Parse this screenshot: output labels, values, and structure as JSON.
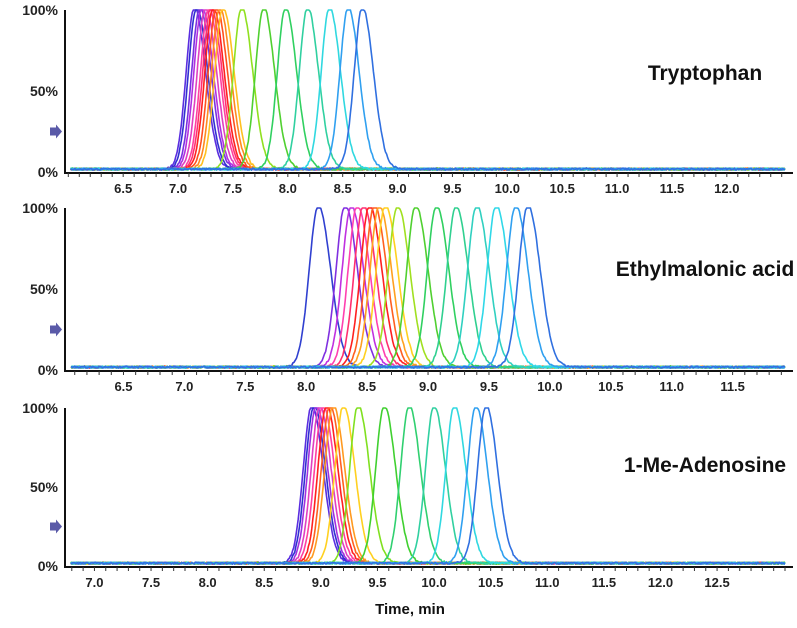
{
  "chart_data": [
    {
      "type": "line",
      "title": "Tryptophan",
      "ylabel_ticks": [
        "100%",
        "50%",
        "0%"
      ],
      "xlim": [
        5.97,
        12.53
      ],
      "ylim": [
        0,
        100
      ],
      "xticks": [
        "6.5",
        "7.0",
        "7.5",
        "8.0",
        "8.5",
        "9.0",
        "9.5",
        "10.0",
        "10.5",
        "11.0",
        "11.5",
        "12.0"
      ],
      "series": [
        {
          "rt": 7.15,
          "color": "#5a2de0"
        },
        {
          "rt": 7.17,
          "color": "#3030d0"
        },
        {
          "rt": 7.2,
          "color": "#7a30e0"
        },
        {
          "rt": 7.22,
          "color": "#b030e0"
        },
        {
          "rt": 7.25,
          "color": "#e040c0"
        },
        {
          "rt": 7.28,
          "color": "#ff40a0"
        },
        {
          "rt": 7.3,
          "color": "#ff3070"
        },
        {
          "rt": 7.32,
          "color": "#ff2020"
        },
        {
          "rt": 7.35,
          "color": "#ff5020"
        },
        {
          "rt": 7.38,
          "color": "#ff8a20"
        },
        {
          "rt": 7.41,
          "color": "#ffc020"
        },
        {
          "rt": 7.58,
          "color": "#90e020"
        },
        {
          "rt": 7.78,
          "color": "#50d030"
        },
        {
          "rt": 7.98,
          "color": "#30d060"
        },
        {
          "rt": 8.18,
          "color": "#30d0a0"
        },
        {
          "rt": 8.38,
          "color": "#30d8e0"
        },
        {
          "rt": 8.55,
          "color": "#30a0f0"
        },
        {
          "rt": 8.68,
          "color": "#3070e0"
        }
      ]
    },
    {
      "type": "line",
      "title": "Ethylmalonic acid",
      "ylabel_ticks": [
        "100%",
        "50%",
        "0%"
      ],
      "xlim": [
        6.02,
        11.93
      ],
      "ylim": [
        0,
        100
      ],
      "xticks": [
        "6.5",
        "7.0",
        "7.5",
        "8.0",
        "8.5",
        "9.0",
        "9.5",
        "10.0",
        "10.5",
        "11.0",
        "11.5"
      ],
      "series": [
        {
          "rt": 8.1,
          "color": "#3040d0"
        },
        {
          "rt": 8.32,
          "color": "#8030e0"
        },
        {
          "rt": 8.37,
          "color": "#c030e0"
        },
        {
          "rt": 8.42,
          "color": "#ff40b0"
        },
        {
          "rt": 8.47,
          "color": "#ff3070"
        },
        {
          "rt": 8.52,
          "color": "#ff2020"
        },
        {
          "rt": 8.56,
          "color": "#ff6020"
        },
        {
          "rt": 8.6,
          "color": "#ffa020"
        },
        {
          "rt": 8.65,
          "color": "#ffd020"
        },
        {
          "rt": 8.75,
          "color": "#a0e020"
        },
        {
          "rt": 8.9,
          "color": "#50d030"
        },
        {
          "rt": 9.07,
          "color": "#30d060"
        },
        {
          "rt": 9.23,
          "color": "#30d090"
        },
        {
          "rt": 9.4,
          "color": "#30d0c0"
        },
        {
          "rt": 9.56,
          "color": "#30d8e8"
        },
        {
          "rt": 9.72,
          "color": "#30a0f0"
        },
        {
          "rt": 9.82,
          "color": "#3070e0"
        }
      ]
    },
    {
      "type": "line",
      "title": "1-Me-Adenosine",
      "xlabel": "Time, min",
      "ylabel_ticks": [
        "100%",
        "50%",
        "0%"
      ],
      "xlim": [
        6.74,
        13.1
      ],
      "ylim": [
        0,
        100
      ],
      "xticks": [
        "7.0",
        "7.5",
        "8.0",
        "8.5",
        "9.0",
        "9.5",
        "10.0",
        "10.5",
        "11.0",
        "11.5",
        "12.0",
        "12.5"
      ],
      "series": [
        {
          "rt": 8.92,
          "color": "#5a2de0"
        },
        {
          "rt": 8.94,
          "color": "#3030d0"
        },
        {
          "rt": 8.96,
          "color": "#a030e0"
        },
        {
          "rt": 8.99,
          "color": "#e040c0"
        },
        {
          "rt": 9.02,
          "color": "#ff40a0"
        },
        {
          "rt": 9.05,
          "color": "#ff2020"
        },
        {
          "rt": 9.08,
          "color": "#ff6020"
        },
        {
          "rt": 9.11,
          "color": "#ff9a20"
        },
        {
          "rt": 9.2,
          "color": "#ffd020"
        },
        {
          "rt": 9.33,
          "color": "#80e020"
        },
        {
          "rt": 9.56,
          "color": "#40d030"
        },
        {
          "rt": 9.78,
          "color": "#30d070"
        },
        {
          "rt": 10.0,
          "color": "#30d0a0"
        },
        {
          "rt": 10.18,
          "color": "#30d8e0"
        },
        {
          "rt": 10.37,
          "color": "#30a0f0"
        },
        {
          "rt": 10.46,
          "color": "#3070e0"
        }
      ]
    }
  ]
}
